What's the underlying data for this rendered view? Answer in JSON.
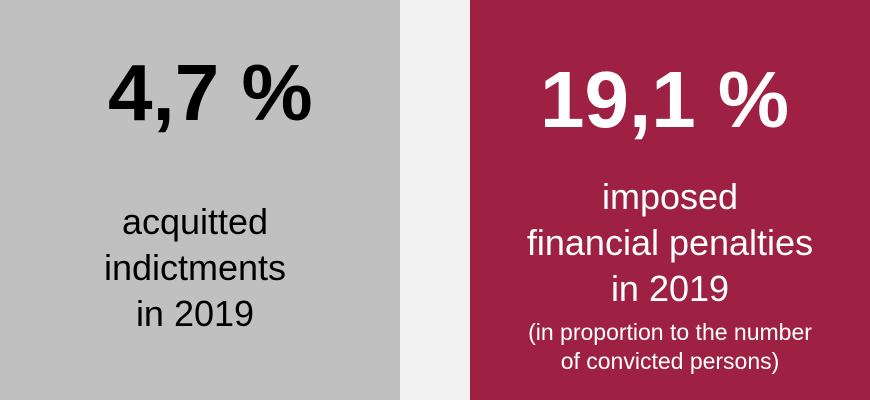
{
  "left_panel": {
    "value": "4,7 %",
    "description_lines": [
      "acquitted",
      "indictments",
      "in 2019"
    ],
    "background": "#c0c0c0"
  },
  "right_panel": {
    "value": "19,1 %",
    "description_lines": [
      "imposed",
      "financial penalties",
      "in 2019"
    ],
    "note_lines": [
      "(in proportion to the number",
      "of convicted persons)"
    ],
    "background": "#9e2144"
  }
}
